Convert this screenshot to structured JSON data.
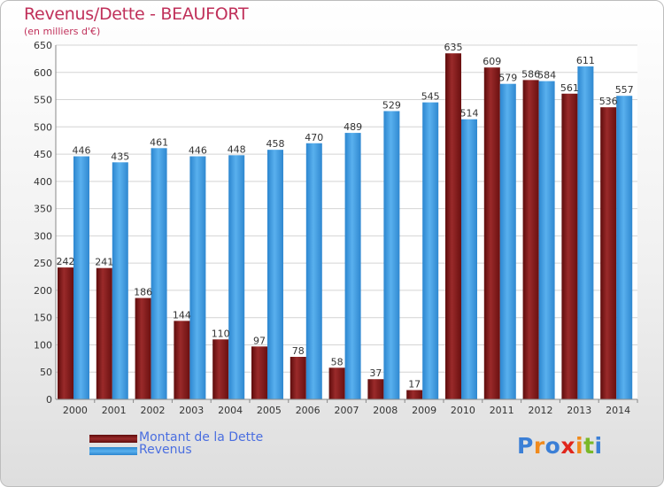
{
  "title": "Revenus/Dette - BEAUFORT",
  "subtitle": "(en milliers d'€)",
  "colors": {
    "debt": "#8b1a1a",
    "revenue": "#3d9ae0",
    "title": "#c0305a",
    "legend_text": "#4a6ee0"
  },
  "legend": {
    "debt": "Montant de la Dette",
    "revenue": "Revenus"
  },
  "logo": {
    "letters": [
      "P",
      "r",
      "o",
      "x",
      "i",
      "t",
      "i"
    ],
    "colors": [
      "#3b7fd6",
      "#f08a1c",
      "#3b7fd6",
      "#e0261c",
      "#f08a1c",
      "#7ab828",
      "#3b7fd6"
    ]
  },
  "chart_data": {
    "type": "bar",
    "categories": [
      "2000",
      "2001",
      "2002",
      "2003",
      "2004",
      "2005",
      "2006",
      "2007",
      "2008",
      "2009",
      "2010",
      "2011",
      "2012",
      "2013",
      "2014"
    ],
    "series": [
      {
        "name": "Montant de la Dette",
        "values": [
          242,
          241,
          186,
          144,
          110,
          97,
          78,
          58,
          37,
          17,
          635,
          609,
          586,
          561,
          536
        ]
      },
      {
        "name": "Revenus",
        "values": [
          446,
          435,
          461,
          446,
          448,
          458,
          470,
          489,
          529,
          545,
          514,
          579,
          584,
          611,
          557
        ]
      }
    ],
    "yticks": [
      0,
      50,
      100,
      150,
      200,
      250,
      300,
      350,
      400,
      450,
      500,
      550,
      600,
      650
    ],
    "ylim": [
      0,
      650
    ],
    "grid": true,
    "legend_position": "bottom-left"
  }
}
